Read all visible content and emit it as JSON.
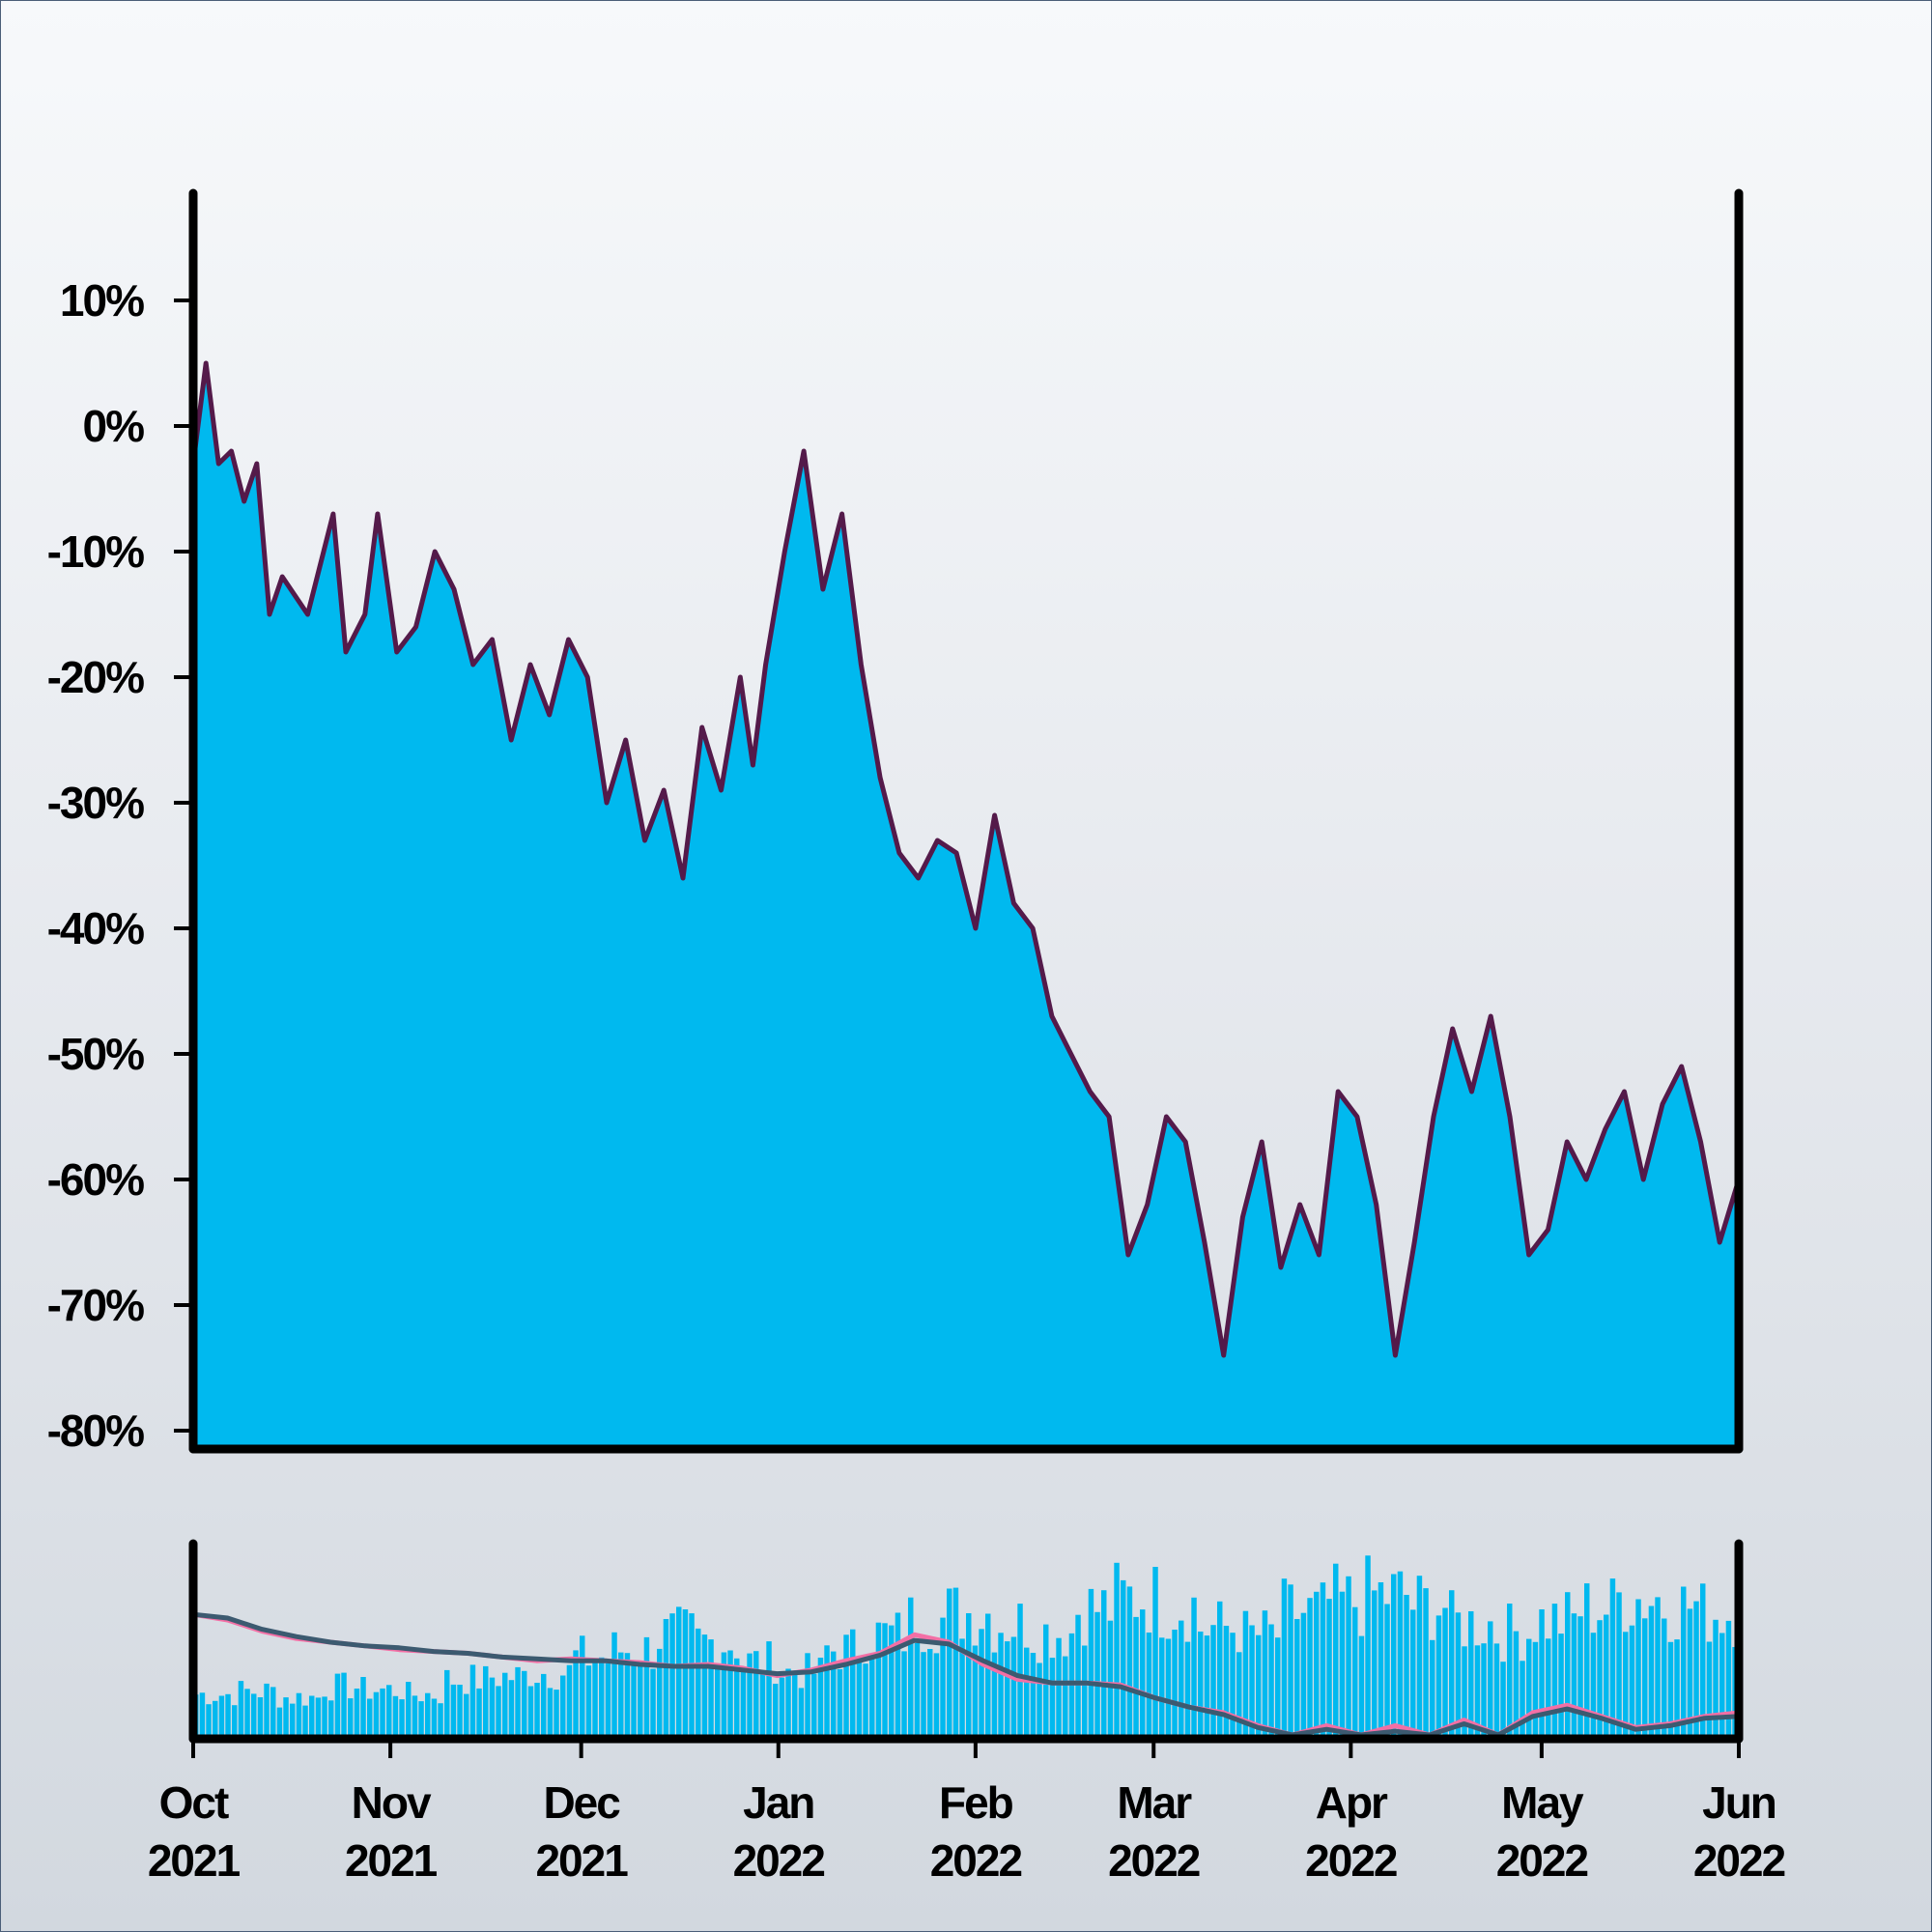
{
  "colors": {
    "area_fill": "#00b9ef",
    "area_line": "#541a4a",
    "axis": "#000000",
    "volume_bars": "#00b9ef",
    "ma_fast": "#f36fa5",
    "ma_slow": "#3c5a70"
  },
  "chart_data": [
    {
      "type": "area",
      "title": "",
      "xlabel": "",
      "ylabel": "",
      "y_unit": "%",
      "ylim": [
        -80,
        18
      ],
      "xlim": [
        "2021-10-01",
        "2022-06-01"
      ],
      "yticks": [
        10,
        0,
        -10,
        -20,
        -30,
        -40,
        -50,
        -60,
        -70,
        -80
      ],
      "ytick_labels": [
        "10%",
        "0%",
        "-10%",
        "-20%",
        "-30%",
        "-40%",
        "-50%",
        "-60%",
        "-70%",
        "-80%"
      ],
      "grid": false,
      "x": [
        "2021-10-01",
        "2021-10-03",
        "2021-10-05",
        "2021-10-07",
        "2021-10-09",
        "2021-10-11",
        "2021-10-13",
        "2021-10-15",
        "2021-10-19",
        "2021-10-23",
        "2021-10-25",
        "2021-10-28",
        "2021-10-30",
        "2021-11-02",
        "2021-11-05",
        "2021-11-08",
        "2021-11-11",
        "2021-11-14",
        "2021-11-17",
        "2021-11-20",
        "2021-11-23",
        "2021-11-26",
        "2021-11-29",
        "2021-12-02",
        "2021-12-05",
        "2021-12-08",
        "2021-12-11",
        "2021-12-14",
        "2021-12-17",
        "2021-12-20",
        "2021-12-23",
        "2021-12-26",
        "2021-12-28",
        "2021-12-30",
        "2022-01-02",
        "2022-01-05",
        "2022-01-08",
        "2022-01-11",
        "2022-01-14",
        "2022-01-17",
        "2022-01-20",
        "2022-01-23",
        "2022-01-26",
        "2022-01-29",
        "2022-02-01",
        "2022-02-04",
        "2022-02-07",
        "2022-02-10",
        "2022-02-13",
        "2022-02-16",
        "2022-02-19",
        "2022-02-22",
        "2022-02-25",
        "2022-02-28",
        "2022-03-03",
        "2022-03-06",
        "2022-03-09",
        "2022-03-12",
        "2022-03-15",
        "2022-03-18",
        "2022-03-21",
        "2022-03-24",
        "2022-03-27",
        "2022-03-30",
        "2022-04-02",
        "2022-04-05",
        "2022-04-08",
        "2022-04-11",
        "2022-04-14",
        "2022-04-17",
        "2022-04-20",
        "2022-04-23",
        "2022-04-26",
        "2022-04-29",
        "2022-05-02",
        "2022-05-05",
        "2022-05-08",
        "2022-05-11",
        "2022-05-14",
        "2022-05-17",
        "2022-05-20",
        "2022-05-23",
        "2022-05-26",
        "2022-05-29",
        "2022-06-01"
      ],
      "series": [
        {
          "values": [
            -3,
            5,
            -3,
            -2,
            -6,
            -3,
            -15,
            -12,
            -15,
            -7,
            -18,
            -15,
            -7,
            -18,
            -16,
            -10,
            -13,
            -19,
            -17,
            -25,
            -19,
            -23,
            -17,
            -20,
            -30,
            -25,
            -33,
            -29,
            -36,
            -24,
            -29,
            -20,
            -27,
            -19,
            -10,
            -2,
            -13,
            -7,
            -19,
            -28,
            -34,
            -36,
            -33,
            -34,
            -40,
            -31,
            -38,
            -40,
            -47,
            -50,
            -53,
            -55,
            -66,
            -62,
            -55,
            -57,
            -65,
            -74,
            -63,
            -57,
            -67,
            -62,
            -66,
            -53,
            -55,
            -62,
            -74,
            -65,
            -55,
            -48,
            -53,
            -47,
            -55,
            -66,
            -64,
            -57,
            -60,
            -56,
            -53,
            -60,
            -54,
            -51,
            -57,
            -65,
            -60
          ]
        }
      ]
    },
    {
      "type": "bar",
      "description_series": "volume",
      "xlim": [
        "2021-10-01",
        "2022-06-01"
      ],
      "xtick_labels": [
        {
          "month": "Oct",
          "year": "2021"
        },
        {
          "month": "Nov",
          "year": "2021"
        },
        {
          "month": "Dec",
          "year": "2021"
        },
        {
          "month": "Jan",
          "year": "2022"
        },
        {
          "month": "Feb",
          "year": "2022"
        },
        {
          "month": "Mar",
          "year": "2022"
        },
        {
          "month": "Apr",
          "year": "2022"
        },
        {
          "month": "May",
          "year": "2022"
        },
        {
          "month": "Jun",
          "year": "2022"
        }
      ],
      "grid": false,
      "volume_profile": [
        0.3,
        0.32,
        0.28,
        0.35,
        0.33,
        0.3,
        0.4,
        0.42,
        0.45,
        0.55,
        0.6,
        0.7,
        0.65,
        0.52,
        0.45,
        0.6,
        0.7,
        0.8,
        0.85,
        0.78,
        0.72,
        0.88,
        0.95,
        0.9,
        0.75,
        0.7,
        0.85,
        0.92,
        0.97,
        0.9,
        0.78,
        0.72,
        0.8,
        0.88,
        0.95,
        0.9,
        0.85
      ],
      "moving_averages": [
        {
          "values": [
            0.65,
            0.62,
            0.56,
            0.52,
            0.5,
            0.48,
            0.46,
            0.45,
            0.44,
            0.42,
            0.4,
            0.41,
            0.4,
            0.39,
            0.37,
            0.38,
            0.36,
            0.32,
            0.35,
            0.4,
            0.44,
            0.54,
            0.5,
            0.38,
            0.3,
            0.28,
            0.28,
            0.27,
            0.2,
            0.15,
            0.12,
            0.05,
            0.0,
            0.05,
            0.0,
            0.05,
            0.0,
            0.08,
            0.0,
            0.12,
            0.16,
            0.1,
            0.04,
            0.06,
            0.1,
            0.12
          ]
        },
        {
          "values": [
            0.65,
            0.63,
            0.57,
            0.53,
            0.5,
            0.48,
            0.47,
            0.45,
            0.44,
            0.42,
            0.41,
            0.4,
            0.4,
            0.38,
            0.37,
            0.37,
            0.35,
            0.33,
            0.34,
            0.38,
            0.43,
            0.51,
            0.49,
            0.4,
            0.32,
            0.28,
            0.28,
            0.26,
            0.2,
            0.15,
            0.11,
            0.04,
            0.0,
            0.03,
            0.0,
            0.02,
            0.0,
            0.06,
            0.0,
            0.1,
            0.14,
            0.09,
            0.03,
            0.05,
            0.09,
            0.1
          ]
        }
      ]
    }
  ]
}
